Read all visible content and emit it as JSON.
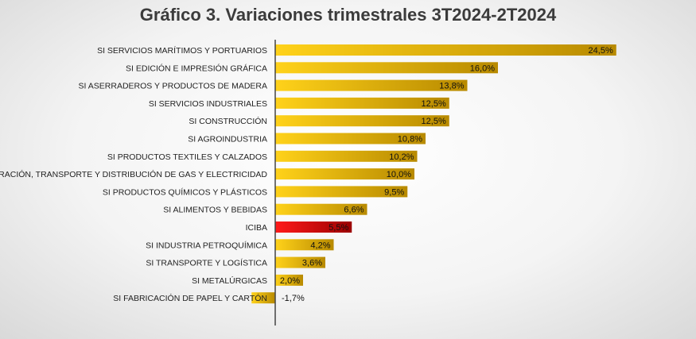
{
  "chart_data": {
    "type": "bar",
    "orientation": "horizontal",
    "title": "Gráfico 3. Variaciones trimestrales 3T2024-2T2024",
    "categories": [
      "SI SERVICIOS MARÍTIMOS Y PORTUARIOS",
      "SI EDICIÓN E IMPRESIÓN GRÁFICA",
      "SI ASERRADEROS Y PRODUCTOS DE MADERA",
      "SI SERVICIOS INDUSTRIALES",
      "SI CONSTRUCCIÓN",
      "SI AGROINDUSTRIA",
      "SI PRODUCTOS TEXTILES Y CALZADOS",
      "SI GENERACIÓN, TRANSPORTE Y DISTRIBUCIÓN DE GAS Y ELECTRICIDAD",
      "SI PRODUCTOS QUÍMICOS Y PLÁSTICOS",
      "SI ALIMENTOS Y BEBIDAS",
      "ICIBA",
      "SI INDUSTRIA PETROQUÍMICA",
      "SI TRANSPORTE Y LOGÍSTICA",
      "SI METALÚRGICAS",
      "SI FABRICACIÓN DE PAPEL Y CARTÓN"
    ],
    "values": [
      24.5,
      16.0,
      13.8,
      12.5,
      12.5,
      10.8,
      10.2,
      10.0,
      9.5,
      6.6,
      5.5,
      4.2,
      3.6,
      2.0,
      -1.7
    ],
    "data_labels": [
      "24,5%",
      "16,0%",
      "13,8%",
      "12,5%",
      "12,5%",
      "10,8%",
      "10,2%",
      "10,0%",
      "9,5%",
      "6,6%",
      "5,5%",
      "4,2%",
      "3,6%",
      "2,0%",
      "-1,7%"
    ],
    "highlight_category": "ICIBA",
    "colors": {
      "bar_start": "#ffd21a",
      "bar_end": "#b88a00",
      "highlight_start": "#ff1a1a",
      "highlight_end": "#9b0000",
      "axis": "#444444"
    },
    "grid": false,
    "legend": "none"
  }
}
